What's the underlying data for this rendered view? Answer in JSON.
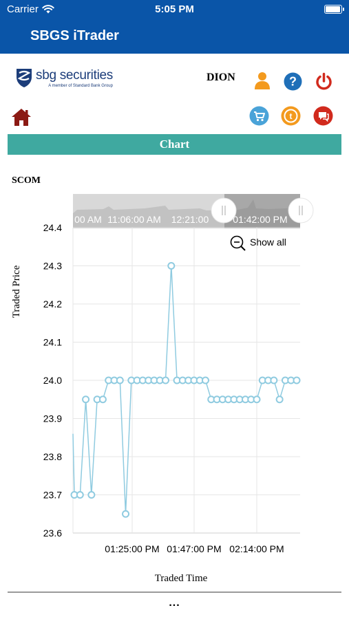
{
  "status_bar": {
    "carrier": "Carrier",
    "time": "5:05 PM",
    "battery_level": 1.0
  },
  "app": {
    "title": "SBGS iTrader"
  },
  "header": {
    "logo_text": "sbg securities",
    "logo_sub": "A member of Standard Bank Group",
    "user_name": "DION",
    "icons": [
      "user-icon",
      "help-icon",
      "power-icon",
      "home-icon",
      "cart-icon",
      "ticket-icon",
      "chat-icon"
    ],
    "colors": {
      "orange": "#f39a1e",
      "blue": "#1f6fb8",
      "red": "#d12a1d",
      "cart": "#4aa3d8",
      "home": "#8b1a14",
      "teal": "#3fa9a0",
      "nav": "#0a55a8"
    }
  },
  "section": {
    "title": "Chart"
  },
  "symbol": "SCOM",
  "chart_controls": {
    "navigator_labels": [
      "00 AM",
      "11:06:00 AM",
      "12:21:00",
      "01:42:00 PM"
    ],
    "show_all_label": "Show all"
  },
  "chart_data": {
    "type": "line",
    "ylabel": "Traded Price",
    "xlabel": "Traded Time",
    "ylim": [
      23.6,
      24.4
    ],
    "yticks": [
      23.6,
      23.7,
      23.8,
      23.9,
      24.0,
      24.1,
      24.2,
      24.3,
      24.4
    ],
    "xtick_labels": [
      "01:25:00 PM",
      "01:47:00 PM",
      "02:14:00 PM"
    ],
    "grid": true,
    "line_color": "#8fcbe0",
    "values": [
      23.7,
      23.7,
      23.95,
      23.7,
      23.95,
      23.95,
      24.0,
      24.0,
      24.0,
      23.65,
      24.0,
      24.0,
      24.0,
      24.0,
      24.0,
      24.0,
      24.0,
      24.3,
      24.0,
      24.0,
      24.0,
      24.0,
      24.0,
      24.0,
      23.95,
      23.95,
      23.95,
      23.95,
      23.95,
      23.95,
      23.95,
      23.95,
      23.95,
      24.0,
      24.0,
      24.0,
      23.95,
      24.0,
      24.0,
      24.0
    ]
  },
  "footer": {
    "more_label": "..."
  }
}
